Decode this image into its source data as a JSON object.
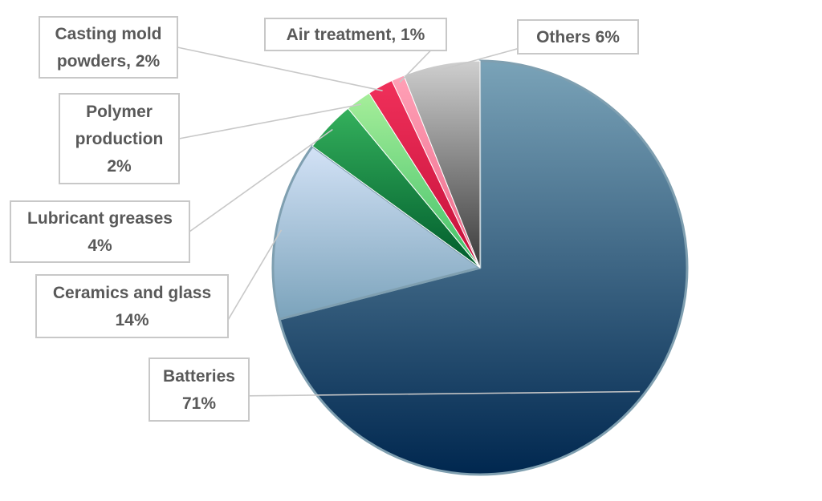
{
  "chart_data": {
    "type": "pie",
    "title": "",
    "series": [
      {
        "name": "",
        "values": [
          71,
          14,
          4,
          2,
          2,
          1,
          6
        ]
      }
    ],
    "categories": [
      "Batteries",
      "Ceramics and glass",
      "Lubricant greases",
      "Polymer production",
      "Casting mold powders",
      "Air treatment",
      "Others"
    ],
    "slices": [
      {
        "label": "Batteries",
        "value": 71,
        "lines": [
          "Batteries",
          "71%"
        ],
        "color_light": "#7aa3b8",
        "color_dark": "#00274f"
      },
      {
        "label": "Ceramics and glass",
        "value": 14,
        "lines": [
          "Ceramics and glass",
          "14%"
        ],
        "color_light": "#d3e2f6",
        "color_dark": "#7ba3bb"
      },
      {
        "label": "Lubricant greases",
        "value": 4,
        "lines": [
          "Lubricant greases",
          "4%"
        ],
        "color_light": "#34b05c",
        "color_dark": "#005c2c"
      },
      {
        "label": "Polymer production",
        "value": 2,
        "lines": [
          "Polymer",
          "production",
          "2%"
        ],
        "color_light": "#a6ee9a",
        "color_dark": "#3fc068"
      },
      {
        "label": "Casting mold powders",
        "value": 2,
        "lines": [
          "Casting mold",
          "powders, 2%"
        ],
        "color_light": "#f0305a",
        "color_dark": "#c4103a"
      },
      {
        "label": "Air treatment",
        "value": 1,
        "lines": [
          "Air treatment, 1%"
        ],
        "color_light": "#ffa0b6",
        "color_dark": "#ec6a8a"
      },
      {
        "label": "Others",
        "value": 6,
        "lines": [
          "Others 6%"
        ],
        "color_light": "#cfcfcf",
        "color_dark": "#3a3a3a"
      }
    ],
    "start_angle_deg": 0,
    "direction": "clockwise",
    "legend": "none",
    "data_labels": "outside-with-leader-lines"
  }
}
